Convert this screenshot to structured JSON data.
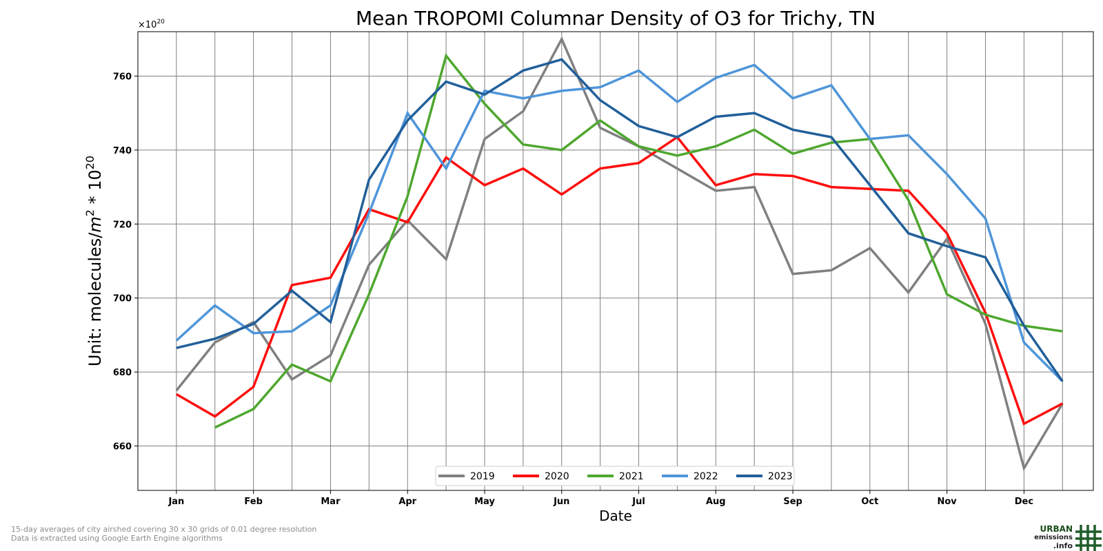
{
  "chart_data": {
    "type": "line",
    "title": "Mean TROPOMI Columnar Density of O3 for Trichy, TN",
    "xlabel": "Date",
    "ylabel_main": "Unit: molecules/",
    "ylabel_m": "m",
    "ylabel_m_exp": "2",
    "ylabel_rest": " * 10",
    "ylabel_exp": "20",
    "offset_base": "×10",
    "offset_exp": "20",
    "xlim": [
      0,
      24.8
    ],
    "ylim": [
      648,
      772
    ],
    "yticks": [
      660,
      680,
      700,
      720,
      740,
      760
    ],
    "ytick_labels": [
      "660",
      "680",
      "700",
      "720",
      "740",
      "760"
    ],
    "month_labels": [
      "Jan",
      "Feb",
      "Mar",
      "Apr",
      "May",
      "Jun",
      "Jul",
      "Aug",
      "Sep",
      "Oct",
      "Nov",
      "Dec"
    ],
    "grid": true,
    "legend_position": "bottom-center",
    "x": [
      1,
      2,
      3,
      4,
      5,
      6,
      7,
      8,
      9,
      10,
      11,
      12,
      13,
      14,
      15,
      16,
      17,
      18,
      19,
      20,
      21,
      22,
      23,
      24
    ],
    "series": [
      {
        "name": "2019",
        "color": "#808080",
        "values": [
          675,
          688,
          693.5,
          678,
          684.5,
          709,
          721,
          710.5,
          743,
          750.5,
          770,
          746,
          741,
          735,
          729,
          730,
          706.5,
          707.5,
          713.5,
          701.5,
          716,
          693,
          654,
          671.5
        ]
      },
      {
        "name": "2020",
        "color": "#ff0d0d",
        "values": [
          674,
          668,
          676,
          703.5,
          705.5,
          724,
          720.5,
          738,
          730.5,
          735,
          728,
          735,
          736.5,
          743.5,
          730.5,
          733.5,
          733,
          730,
          729.5,
          729,
          717.5,
          696,
          666,
          671.5
        ]
      },
      {
        "name": "2021",
        "color": "#4ea72e",
        "values": [
          null,
          665,
          670,
          682,
          677.5,
          701,
          727.5,
          765.5,
          752.5,
          741.5,
          740,
          748,
          741,
          738.5,
          741,
          745.5,
          739,
          742,
          743,
          726.5,
          701,
          695.5,
          692.5,
          691
        ]
      },
      {
        "name": "2022",
        "color": "#4e95d9",
        "values": [
          688.5,
          698,
          690.5,
          691,
          698,
          723,
          750,
          735,
          756,
          754,
          756,
          757,
          761.5,
          753,
          759.5,
          763,
          754,
          757.5,
          743,
          744,
          733.5,
          721.5,
          688,
          677.5
        ]
      },
      {
        "name": "2023",
        "color": "#215f9a",
        "values": [
          686.5,
          689,
          693,
          702,
          693.5,
          732,
          748,
          758.5,
          755,
          761.5,
          764.5,
          753.5,
          746.5,
          743.5,
          749,
          750,
          745.5,
          743.5,
          730.5,
          717.5,
          714,
          711,
          692.5,
          677.5
        ]
      }
    ]
  },
  "footnote": {
    "line1": "15-day averages of city airshed covering 30 x 30 grids of 0.01 degree resolution",
    "line2": "Data is extracted using Google Earth Engine algorithms"
  },
  "logo": {
    "line1": "URBAN",
    "line2": "emissions",
    "line3": ".info"
  }
}
